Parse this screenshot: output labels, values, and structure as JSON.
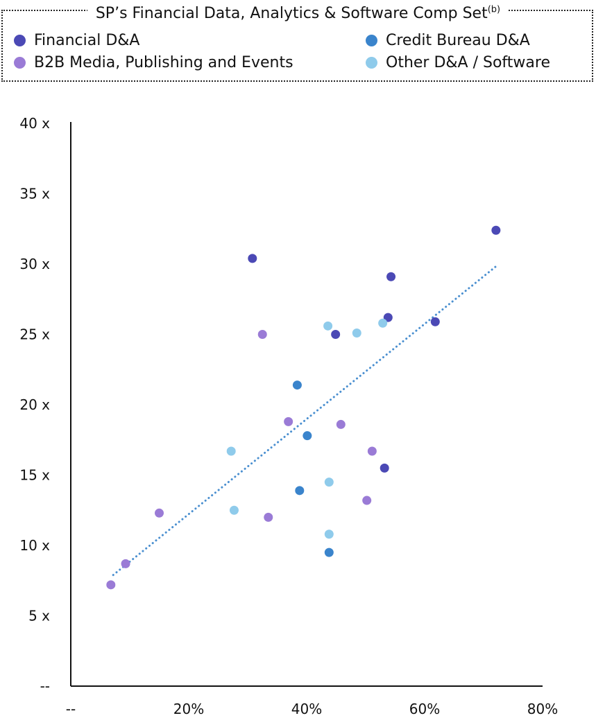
{
  "legend": {
    "title": "SP’s Financial Data, Analytics & Software Comp Set",
    "title_sup": "(b)",
    "items": [
      {
        "label": "Financial D&A",
        "color": "#4b49b5"
      },
      {
        "label": "Credit Bureau D&A",
        "color": "#3a84cc"
      },
      {
        "label": "B2B Media, Publishing and Events",
        "color": "#9a7bd6"
      },
      {
        "label": "Other D&A / Software",
        "color": "#8fcbeb"
      }
    ]
  },
  "chart_data": {
    "type": "scatter",
    "xlim": [
      0,
      80
    ],
    "ylim": [
      0,
      40
    ],
    "x_ticks": [
      {
        "v": 0,
        "label": "--"
      },
      {
        "v": 20,
        "label": "20%"
      },
      {
        "v": 40,
        "label": "40%"
      },
      {
        "v": 60,
        "label": "60%"
      },
      {
        "v": 80,
        "label": "80%"
      }
    ],
    "y_ticks": [
      {
        "v": 0,
        "label": "--"
      },
      {
        "v": 5,
        "label": "5 x"
      },
      {
        "v": 10,
        "label": "10 x"
      },
      {
        "v": 15,
        "label": "15 x"
      },
      {
        "v": 20,
        "label": "20 x"
      },
      {
        "v": 25,
        "label": "25 x"
      },
      {
        "v": 30,
        "label": "30 x"
      },
      {
        "v": 35,
        "label": "35 x"
      },
      {
        "v": 40,
        "label": "40 x"
      }
    ],
    "trendline": {
      "x": [
        7.2,
        72
      ],
      "y": [
        7.9,
        29.8
      ],
      "color": "#4a8fd0",
      "style": "dotted"
    },
    "series": [
      {
        "name": "Financial D&A",
        "color": "#4b49b5",
        "x": [
          30.8,
          44.9,
          53.8,
          54.3,
          61.8,
          72.1,
          53.2
        ],
        "y": [
          30.4,
          25.0,
          26.2,
          29.1,
          25.9,
          32.4,
          15.5
        ]
      },
      {
        "name": "Credit Bureau D&A",
        "color": "#3a84cc",
        "x": [
          38.4,
          40.1,
          38.8,
          43.8
        ],
        "y": [
          21.4,
          17.8,
          13.9,
          9.5
        ]
      },
      {
        "name": "B2B Media, Publishing and Events",
        "color": "#9a7bd6",
        "x": [
          6.8,
          9.3,
          15.0,
          32.5,
          36.9,
          33.5,
          45.8,
          51.1,
          50.2
        ],
        "y": [
          7.2,
          8.7,
          12.3,
          25.0,
          18.8,
          12.0,
          18.6,
          16.7,
          13.2
        ]
      },
      {
        "name": "Other D&A / Software",
        "color": "#8fcbeb",
        "x": [
          27.2,
          27.7,
          43.6,
          48.5,
          52.9,
          43.8,
          43.8
        ],
        "y": [
          16.7,
          12.5,
          25.6,
          25.1,
          25.8,
          14.5,
          10.8
        ]
      }
    ]
  }
}
